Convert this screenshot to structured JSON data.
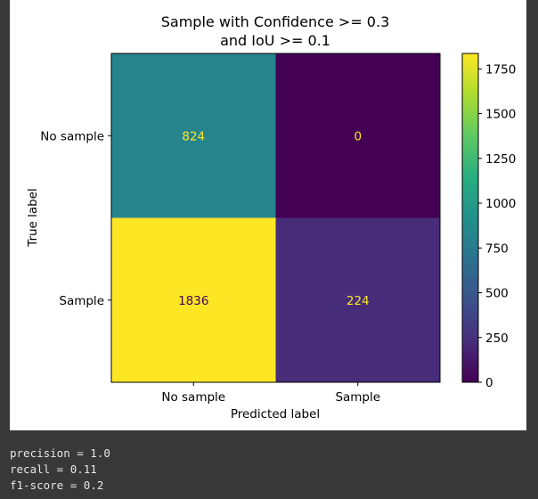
{
  "chart_data": {
    "type": "heatmap",
    "title_lines": [
      "Sample with Confidence >= 0.3",
      "and IoU >= 0.1"
    ],
    "xlabel": "Predicted label",
    "ylabel": "True label",
    "x_categories": [
      "No sample",
      "Sample"
    ],
    "y_categories": [
      "No sample",
      "Sample"
    ],
    "matrix": [
      [
        824,
        0
      ],
      [
        1836,
        224
      ]
    ],
    "colormap": "viridis",
    "colorbar": {
      "min": 0,
      "max": 1836,
      "ticks": [
        0,
        250,
        500,
        750,
        1000,
        1250,
        1500,
        1750
      ]
    }
  },
  "output": {
    "lines": [
      "precision = 1.0",
      "recall = 0.11",
      "f1-score = 0.2"
    ]
  }
}
